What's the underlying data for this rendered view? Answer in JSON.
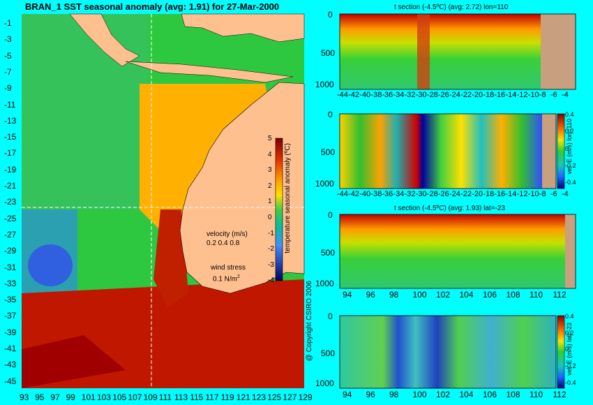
{
  "title": "BRAN_1  SST seasonal anomaly (avg: 1.91) for 27-Mar-2000",
  "map": {
    "lat_labels": [
      "-1",
      "-3",
      "-5",
      "-7",
      "-9",
      "-11",
      "-13",
      "-15",
      "-17",
      "-19",
      "-21",
      "-23",
      "-25",
      "-27",
      "-29",
      "-31",
      "-33",
      "-35",
      "-37",
      "-39",
      "-41",
      "-43",
      "-45"
    ],
    "lon_labels": [
      "93",
      "95",
      "97",
      "99",
      "101",
      "103",
      "105",
      "107",
      "109",
      "111",
      "113",
      "115",
      "117",
      "119",
      "121",
      "123",
      "125",
      "127",
      "129"
    ],
    "colorbar_label": "temperature seasonal anomaly (ºC)",
    "colorbar_ticks": [
      "5",
      "4",
      "3",
      "2",
      "1",
      "0",
      "-1",
      "-2",
      "-3",
      "-4"
    ],
    "velocity_label": "velocity (m/s)",
    "velocity_scale": "0.2 0.4 0.8",
    "wind_label": "wind stress",
    "wind_value": "0.1 N/m",
    "wind_exp": "2",
    "copyright": "@ Copyright CSIRO 2006"
  },
  "panels": [
    {
      "title": "t section (-4.5ºC) (avg: 2.72) lon=110",
      "depth_ticks": [
        "0",
        "500",
        "1000"
      ],
      "x_ticks": [
        "-44",
        "-42",
        "-40",
        "-38",
        "-36",
        "-34",
        "-32",
        "-30",
        "-28",
        "-26",
        "-24",
        "-22",
        "-20",
        "-18",
        "-16",
        "-14",
        "-12",
        "-10",
        "-8",
        "-6",
        "-4"
      ]
    },
    {
      "title": "",
      "depth_ticks": [
        "0",
        "500",
        "1000"
      ],
      "x_ticks": [
        "-44",
        "-42",
        "-40",
        "-38",
        "-36",
        "-34",
        "-32",
        "-30",
        "-28",
        "-26",
        "-24",
        "-22",
        "-20",
        "-18",
        "-16",
        "-14",
        "-12",
        "-10",
        "-8",
        "-6",
        "-4"
      ],
      "cbar_label": "vel. E (m/s) lon=110",
      "cbar_ticks": [
        "0.4",
        "0.2",
        "0",
        "-0.2",
        "-0.4"
      ]
    },
    {
      "title": "t section (-4.5ºC) (avg: 1.93) lat=-23",
      "depth_ticks": [
        "0",
        "500",
        "1000"
      ],
      "x_ticks": [
        "94",
        "96",
        "98",
        "100",
        "102",
        "104",
        "106",
        "108",
        "110",
        "112"
      ]
    },
    {
      "title": "",
      "depth_ticks": [
        "0",
        "500",
        "1000"
      ],
      "x_ticks": [
        "94",
        "96",
        "98",
        "100",
        "102",
        "104",
        "106",
        "108",
        "110",
        "112"
      ],
      "cbar_label": "vel. E (m/s) lat=-23",
      "cbar_ticks": [
        "0.4",
        "0.2",
        "0",
        "-0.2",
        "-0.4"
      ]
    }
  ]
}
